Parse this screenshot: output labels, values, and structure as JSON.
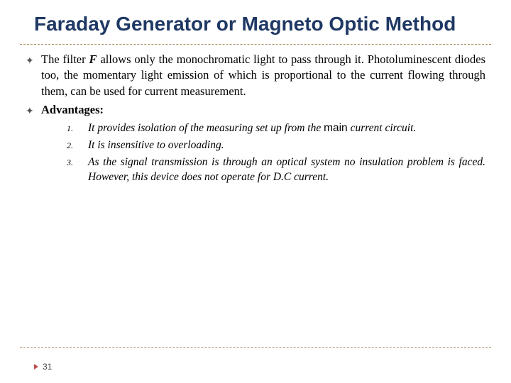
{
  "colors": {
    "title": "#1f3864",
    "divider": "#b08c60",
    "pagenum_marker": "#c0504d",
    "text": "#000000",
    "background": "#ffffff"
  },
  "typography": {
    "title_fontsize_pt": 21,
    "body_fontsize_pt": 12.5,
    "list_fontsize_pt": 11.5,
    "pagenum_fontsize_pt": 9,
    "title_family": "Arial",
    "body_family": "Georgia"
  },
  "title": "Faraday Generator or Magneto Optic Method",
  "bullets": [
    {
      "pre": "The filter ",
      "f": "F",
      "post": " allows only the monochromatic light to pass through it. Photoluminescent diodes too, the momentary light emission of which is proportional to the current flowing through them, can be used for current measurement."
    },
    {
      "label": "Advantages:"
    }
  ],
  "advantages": [
    {
      "pre": "It provides isolation of the measuring set up from the ",
      "main": "main",
      "post": " current circuit."
    },
    {
      "text": "It is insensitive to overloading."
    },
    {
      "text": "As the signal transmission is through an optical system no insulation problem is faced. However, this device does not operate for D.C current."
    }
  ],
  "page_number": "31"
}
